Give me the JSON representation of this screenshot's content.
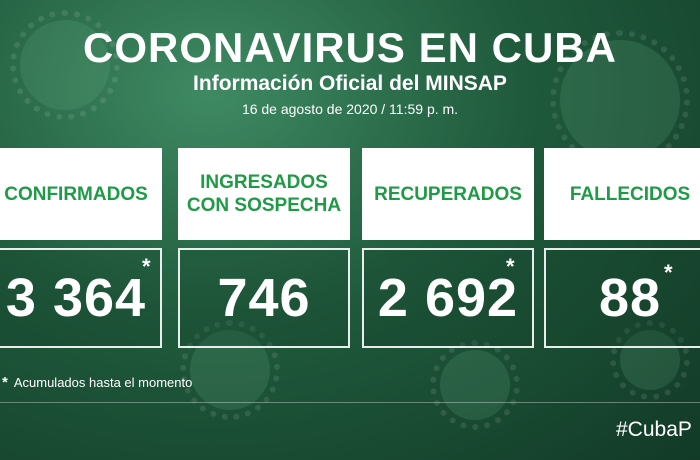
{
  "header": {
    "title": "CORONAVIRUS EN CUBA",
    "subtitle": "Información Oficial del MINSAP",
    "date": "16 de agosto de 2020 / 11:59 p. m."
  },
  "cards": [
    {
      "label": "CONFIRMADOS",
      "value": "3 364",
      "asterisk": "*"
    },
    {
      "label": "INGRESADOS\nCON SOSPECHA",
      "value": "746",
      "asterisk": ""
    },
    {
      "label": "RECUPERADOS",
      "value": "2 692",
      "asterisk": "*"
    },
    {
      "label": "FALLECIDOS",
      "value": "88",
      "asterisk": "*"
    }
  ],
  "footnote": {
    "mark": "*",
    "text": "Acumulados hasta el momento"
  },
  "hashtag": "#CubaP",
  "colors": {
    "label_green": "#1f9a46",
    "background": "#1f5a3c"
  }
}
